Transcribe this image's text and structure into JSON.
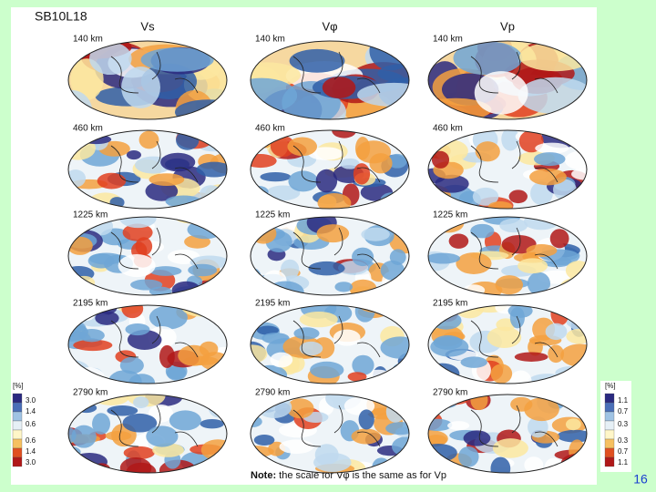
{
  "title": "SB10L18",
  "columns": [
    "Vs",
    "Vφ",
    "Vp"
  ],
  "depths": [
    "140 km",
    "460 km",
    "1225 km",
    "2195 km",
    "2790 km"
  ],
  "scales": {
    "left": {
      "unit": "[%]",
      "labels": [
        "3.0",
        "1.4",
        "0.6",
        "0.6",
        "1.4",
        "3.0"
      ]
    },
    "right": {
      "unit": "[%]",
      "labels": [
        "1.1",
        "0.7",
        "0.3",
        "0.3",
        "0.7",
        "1.1"
      ]
    }
  },
  "note": {
    "label": "Note:",
    "text": " the scale for Vφ is the same as for Vp"
  },
  "page_number": "16"
}
